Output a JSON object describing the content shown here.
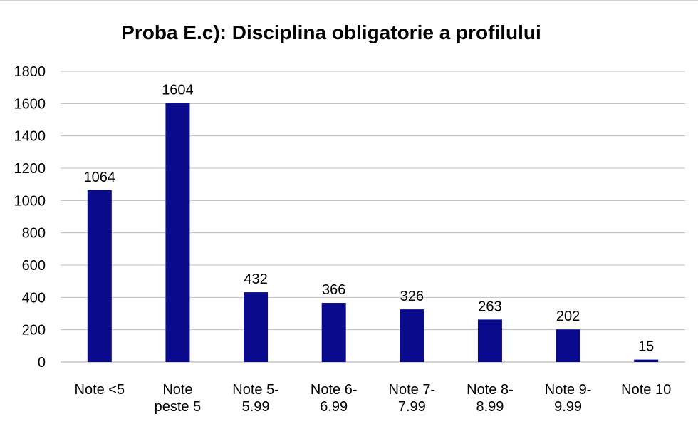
{
  "chart_data": {
    "type": "bar",
    "title": "Proba E.c): Disciplina obligatorie a profilului",
    "xlabel": "",
    "ylabel": "",
    "categories": [
      [
        "Note <5"
      ],
      [
        "Note",
        "peste 5"
      ],
      [
        "Note 5-",
        "5.99"
      ],
      [
        "Note 6-",
        "6.99"
      ],
      [
        "Note 7-",
        "7.99"
      ],
      [
        "Note 8-",
        "8.99"
      ],
      [
        "Note 9-",
        "9.99"
      ],
      [
        "Note 10"
      ]
    ],
    "values": [
      1064,
      1604,
      432,
      366,
      326,
      263,
      202,
      15
    ],
    "data_labels": [
      "1064",
      "1604",
      "432",
      "366",
      "326",
      "263",
      "202",
      "15"
    ],
    "ylim": [
      0,
      1800
    ],
    "yticks": [
      "0",
      "200",
      "400",
      "600",
      "800",
      "1000",
      "1200",
      "1400",
      "1600",
      "1800"
    ],
    "grid": true,
    "legend": "none",
    "colors": {
      "bar": "#0a0a8c",
      "grid": "#bfbfbf",
      "axis": "#a6a6a6"
    }
  }
}
